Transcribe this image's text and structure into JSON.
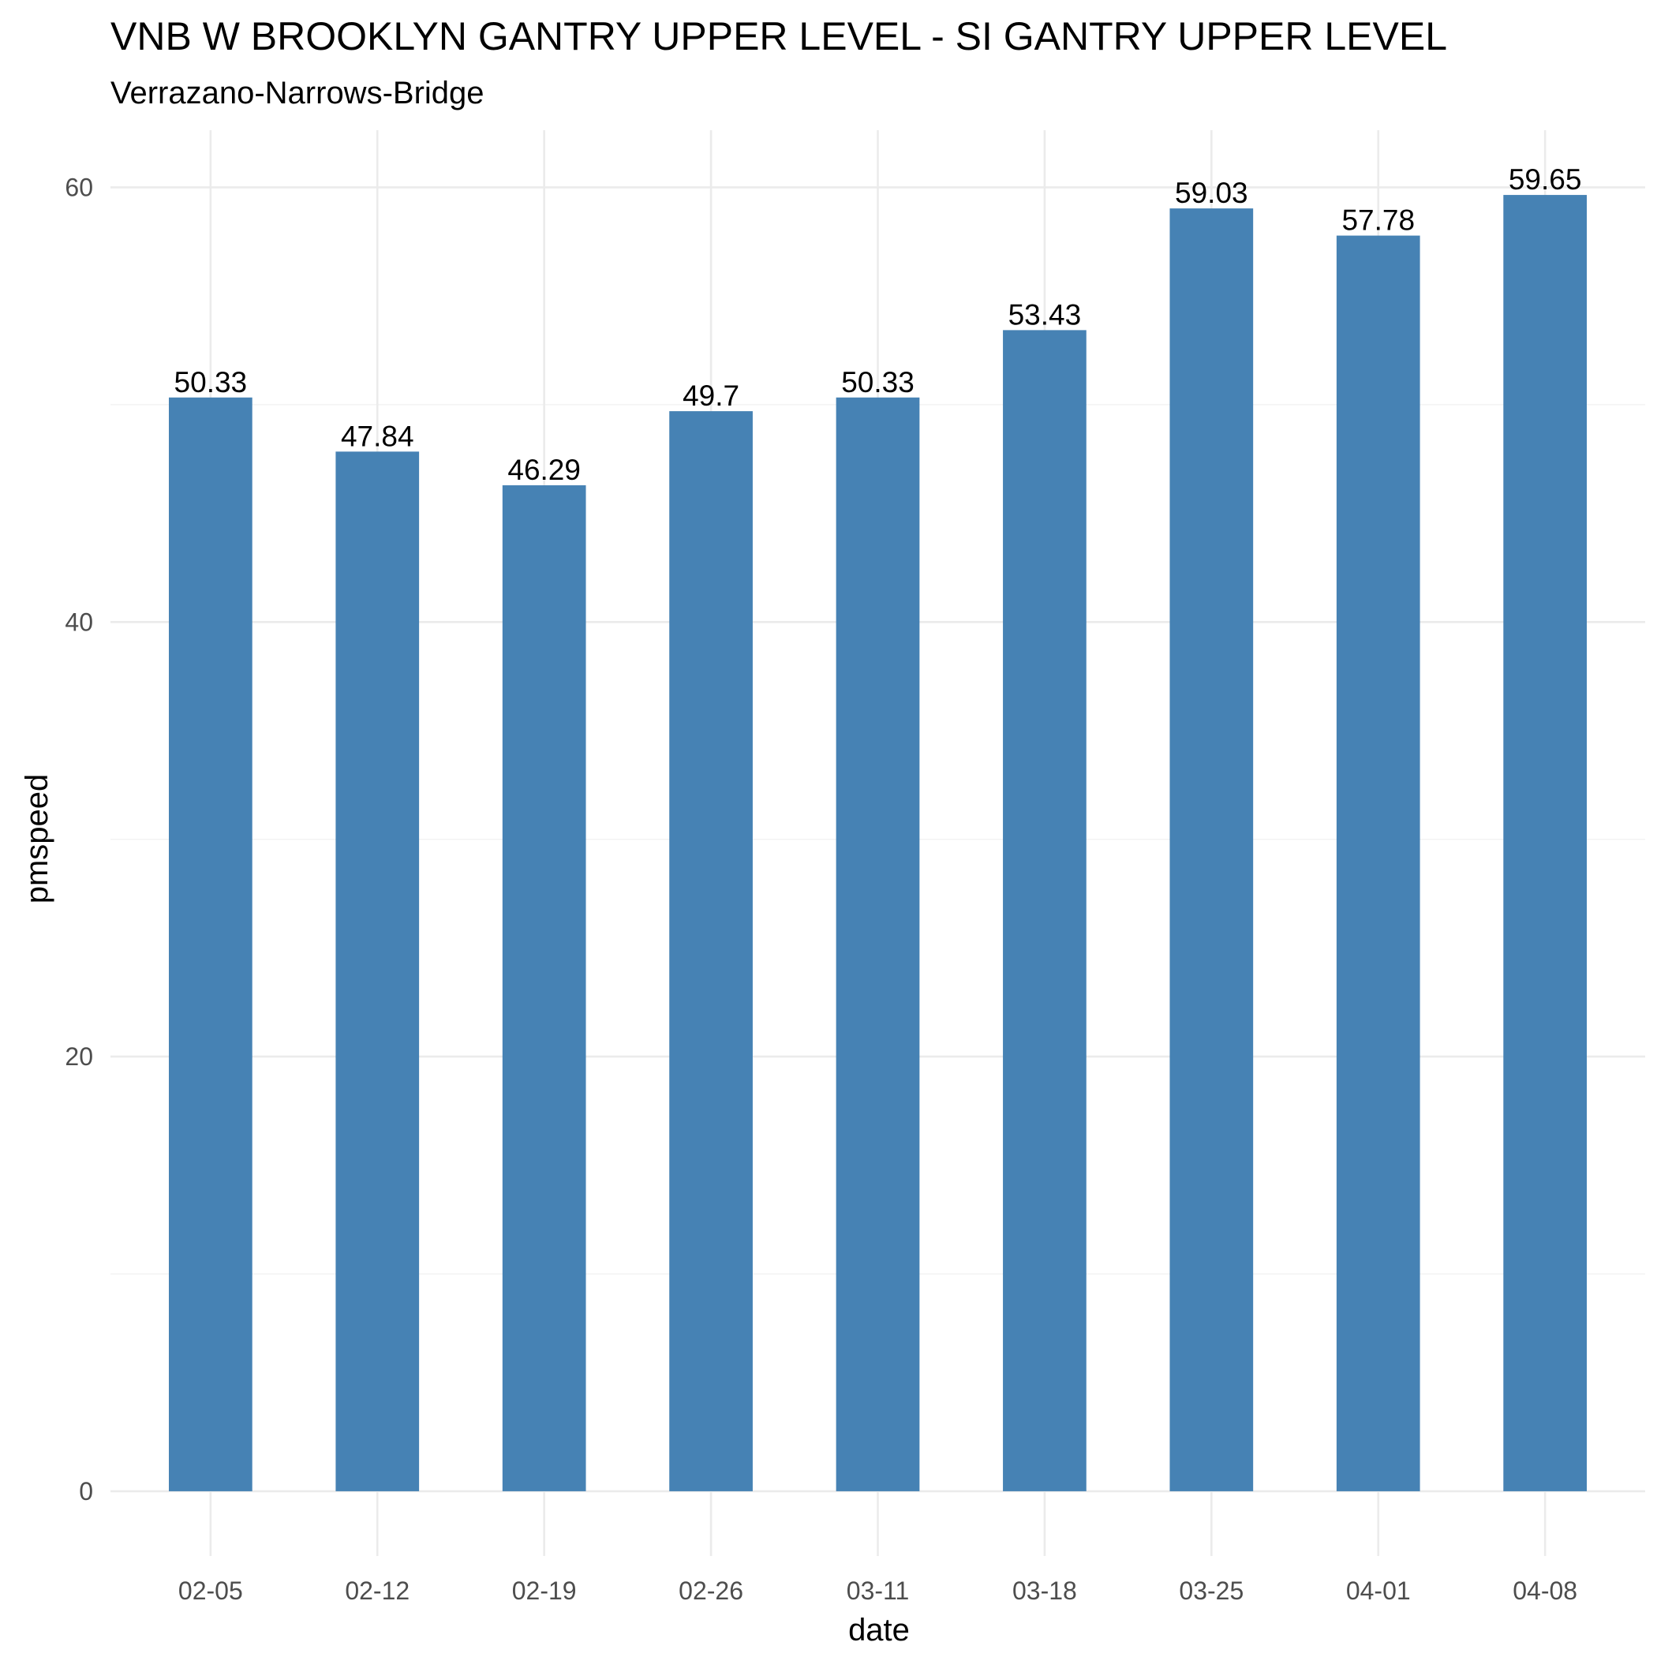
{
  "chart_data": {
    "type": "bar",
    "title": "VNB W BROOKLYN GANTRY UPPER LEVEL - SI GANTRY UPPER LEVEL",
    "subtitle": "Verrazano-Narrows-Bridge",
    "xlabel": "date",
    "ylabel": "pmspeed",
    "categories": [
      "02-05",
      "02-12",
      "02-19",
      "02-26",
      "03-11",
      "03-18",
      "03-25",
      "04-01",
      "04-08"
    ],
    "values": [
      50.33,
      47.84,
      46.29,
      49.7,
      50.33,
      53.43,
      59.03,
      57.78,
      59.65
    ],
    "value_labels": [
      "50.33",
      "47.84",
      "46.29",
      "49.7",
      "50.33",
      "53.43",
      "59.03",
      "57.78",
      "59.65"
    ],
    "y_ticks": [
      0,
      20,
      40,
      60
    ],
    "y_tick_labels": [
      "0",
      "20",
      "40",
      "60"
    ],
    "ylim": [
      -2.98,
      62.63
    ],
    "grid": true,
    "legend": "none",
    "bar_color": "#4682b4"
  }
}
